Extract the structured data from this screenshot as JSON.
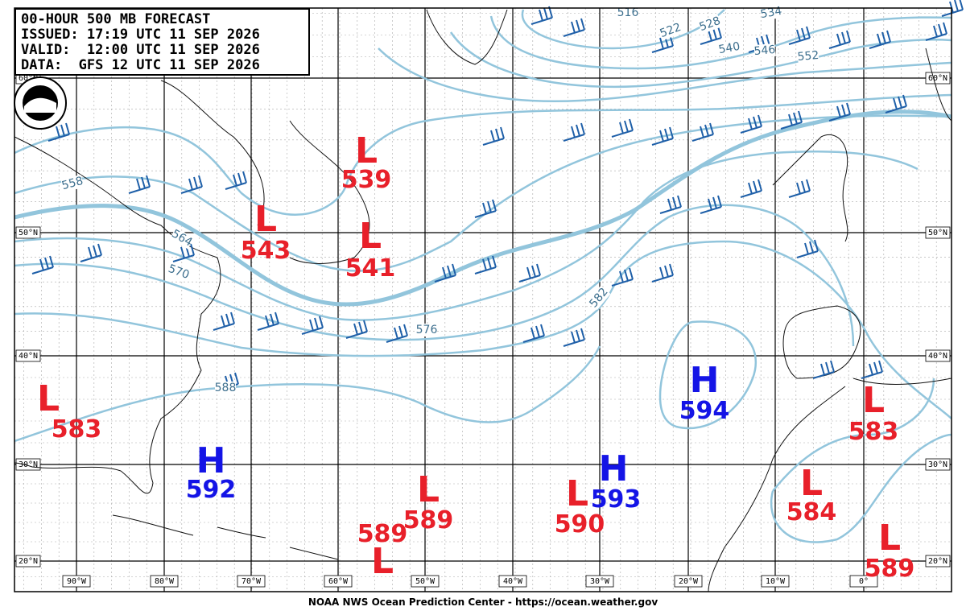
{
  "header": {
    "lines": [
      "00-HOUR 500 MB FORECAST",
      "ISSUED: 17:19 UTC 11 SEP 2026",
      "VALID:  12:00 UTC 11 SEP 2026",
      "DATA:  GFS 12 UTC 11 SEP 2026"
    ]
  },
  "footer": "NOAA NWS Ocean Prediction Center - https://ocean.weather.gov",
  "latitude_labels": [
    "60°N",
    "50°N",
    "40°N",
    "30°N",
    "20°N"
  ],
  "longitude_labels": [
    "90°W",
    "80°W",
    "70°W",
    "60°W",
    "50°W",
    "40°W",
    "30°W",
    "20°W",
    "10°W",
    "0°"
  ],
  "centers": [
    {
      "kind": "L",
      "value": 583
    },
    {
      "kind": "H",
      "value": 592
    },
    {
      "kind": "L",
      "value": 539
    },
    {
      "kind": "L",
      "value": 543
    },
    {
      "kind": "L",
      "value": 541
    },
    {
      "kind": "L",
      "value": 589
    },
    {
      "kind": "L",
      "value": 589
    },
    {
      "kind": "L",
      "value": 590
    },
    {
      "kind": "H",
      "value": 593
    },
    {
      "kind": "H",
      "value": 594
    },
    {
      "kind": "L",
      "value": 583
    },
    {
      "kind": "L",
      "value": 584
    },
    {
      "kind": "L",
      "value": 589
    }
  ],
  "contour_labels": [
    516,
    522,
    528,
    534,
    540,
    546,
    552,
    558,
    564,
    570,
    576,
    582,
    588
  ]
}
